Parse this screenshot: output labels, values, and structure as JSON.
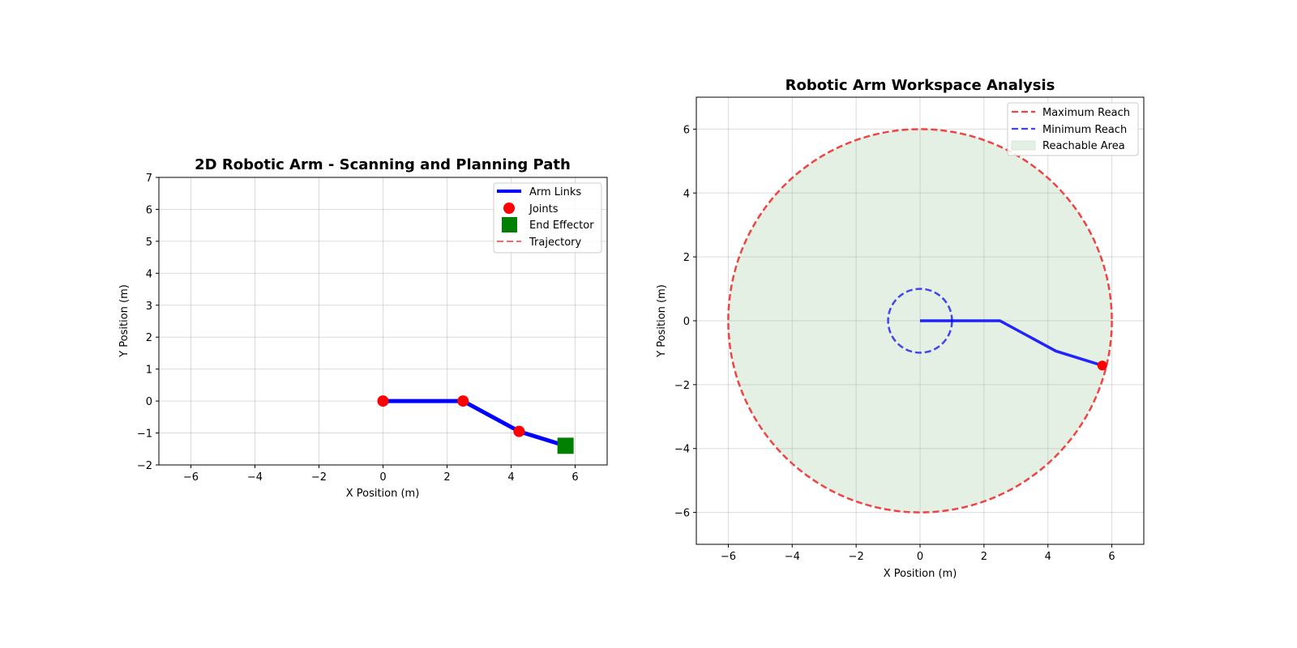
{
  "chart_data": [
    {
      "type": "line",
      "title": "2D Robotic Arm - Scanning and Planning Path",
      "xlabel": "X Position (m)",
      "ylabel": "Y Position (m)",
      "xlim": [
        -7,
        7
      ],
      "ylim": [
        -2,
        7
      ],
      "xticks": [
        -6,
        -4,
        -2,
        0,
        2,
        4,
        6
      ],
      "yticks": [
        -2,
        -1,
        0,
        1,
        2,
        3,
        4,
        5,
        6,
        7
      ],
      "grid": true,
      "legend_position": "upper right",
      "arm_links": {
        "x": [
          0,
          2.5,
          4.25,
          5.7
        ],
        "y": [
          0,
          0,
          -0.95,
          -1.4
        ],
        "color": "#0000ff"
      },
      "joints": {
        "x": [
          0,
          2.5,
          4.25
        ],
        "y": [
          0,
          0,
          -0.95
        ],
        "color": "#ff0000"
      },
      "end_effector": {
        "x": 5.7,
        "y": -1.4,
        "color": "#008000"
      },
      "trajectory": {
        "x": [],
        "y": [],
        "color": "#ff6666"
      },
      "legend": [
        {
          "label": "Arm Links",
          "kind": "line",
          "color": "#0000ff"
        },
        {
          "label": "Joints",
          "kind": "circle",
          "color": "#ff0000"
        },
        {
          "label": "End Effector",
          "kind": "square",
          "color": "#008000"
        },
        {
          "label": "Trajectory",
          "kind": "dashed",
          "color": "#ff6666"
        }
      ]
    },
    {
      "type": "line",
      "title": "Robotic Arm Workspace Analysis",
      "xlabel": "X Position (m)",
      "ylabel": "Y Position (m)",
      "xlim": [
        -7,
        7
      ],
      "ylim": [
        -7,
        7
      ],
      "xticks": [
        -6,
        -4,
        -2,
        0,
        2,
        4,
        6
      ],
      "yticks": [
        -6,
        -4,
        -2,
        0,
        2,
        4,
        6
      ],
      "grid": true,
      "legend_position": "upper right",
      "max_reach_radius": 6,
      "min_reach_radius": 1,
      "arm": {
        "x": [
          0,
          2.5,
          4.25,
          5.7
        ],
        "y": [
          0,
          0,
          -0.95,
          -1.4
        ],
        "color": "#0000ff"
      },
      "end_effector": {
        "x": 5.7,
        "y": -1.4,
        "color": "#ff0000"
      },
      "legend": [
        {
          "label": "Maximum Reach",
          "kind": "dashed",
          "color": "#ee4444"
        },
        {
          "label": "Minimum Reach",
          "kind": "dashed",
          "color": "#4444ee"
        },
        {
          "label": "Reachable Area",
          "kind": "patch",
          "color": "#e3f0e3"
        }
      ]
    }
  ]
}
